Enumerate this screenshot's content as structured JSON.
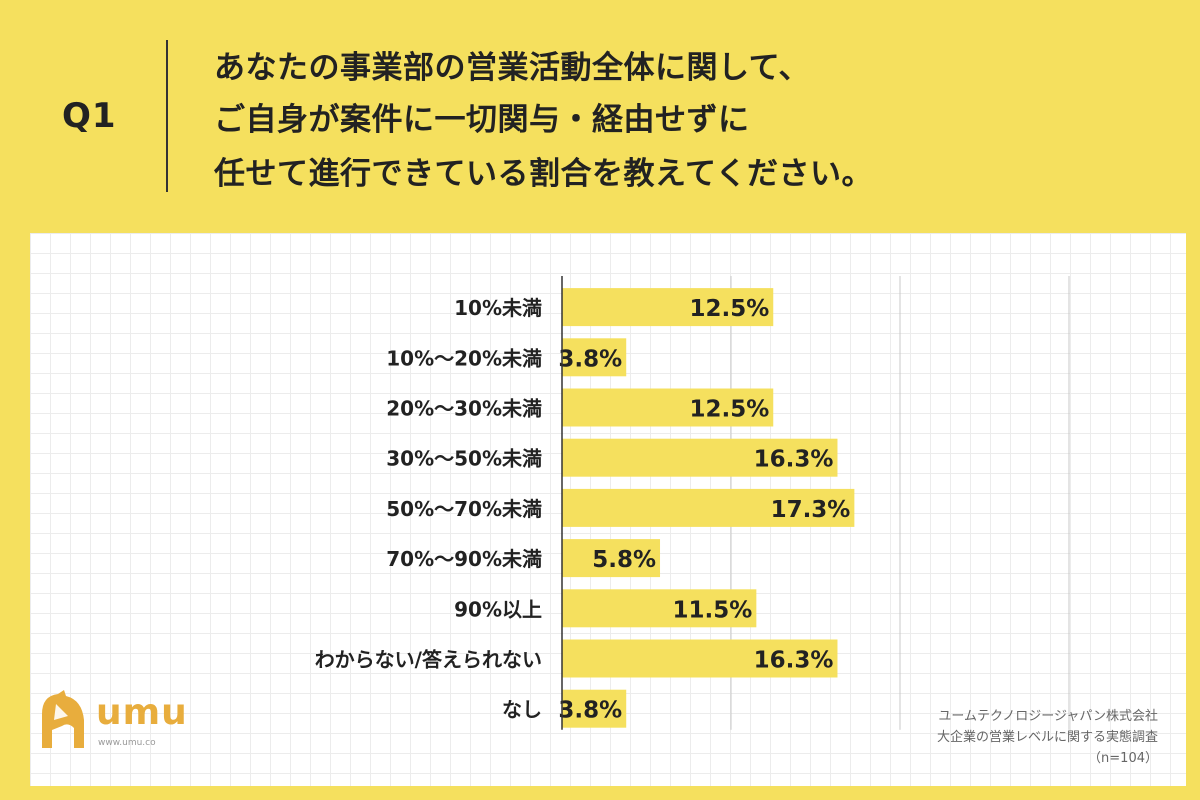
{
  "question": {
    "label": "Q1",
    "lines": [
      "あなたの事業部の営業活動全体に関して、",
      "ご自身が案件に一切関与・経由せずに",
      "任せて進行できている割合を教えてください。"
    ]
  },
  "chart_data": {
    "type": "bar",
    "orientation": "horizontal",
    "categories": [
      "10%未満",
      "10%〜20%未満",
      "20%〜30%未満",
      "30%〜50%未満",
      "50%〜70%未満",
      "70%〜90%未満",
      "90%以上",
      "わからない/答えられない",
      "なし"
    ],
    "values": [
      12.5,
      3.8,
      12.5,
      16.3,
      17.3,
      5.8,
      11.5,
      16.3,
      3.8
    ],
    "value_labels": [
      "12.5%",
      "3.8%",
      "12.5%",
      "16.3%",
      "17.3%",
      "5.8%",
      "11.5%",
      "16.3%",
      "3.8%"
    ],
    "xlim": [
      0,
      40
    ],
    "grid": true,
    "bar_color": "#f5e05e"
  },
  "logo": {
    "name": "umu-logo",
    "word": "umu",
    "url": "www.umu.co"
  },
  "source": {
    "company": "ユームテクノロジージャパン株式会社",
    "survey": "大企業の営業レベルに関する実態調査",
    "sample": "（n=104）"
  },
  "colors": {
    "background": "#f5e05e",
    "bar": "#f5e05e",
    "logo": "#e8ad3d"
  }
}
